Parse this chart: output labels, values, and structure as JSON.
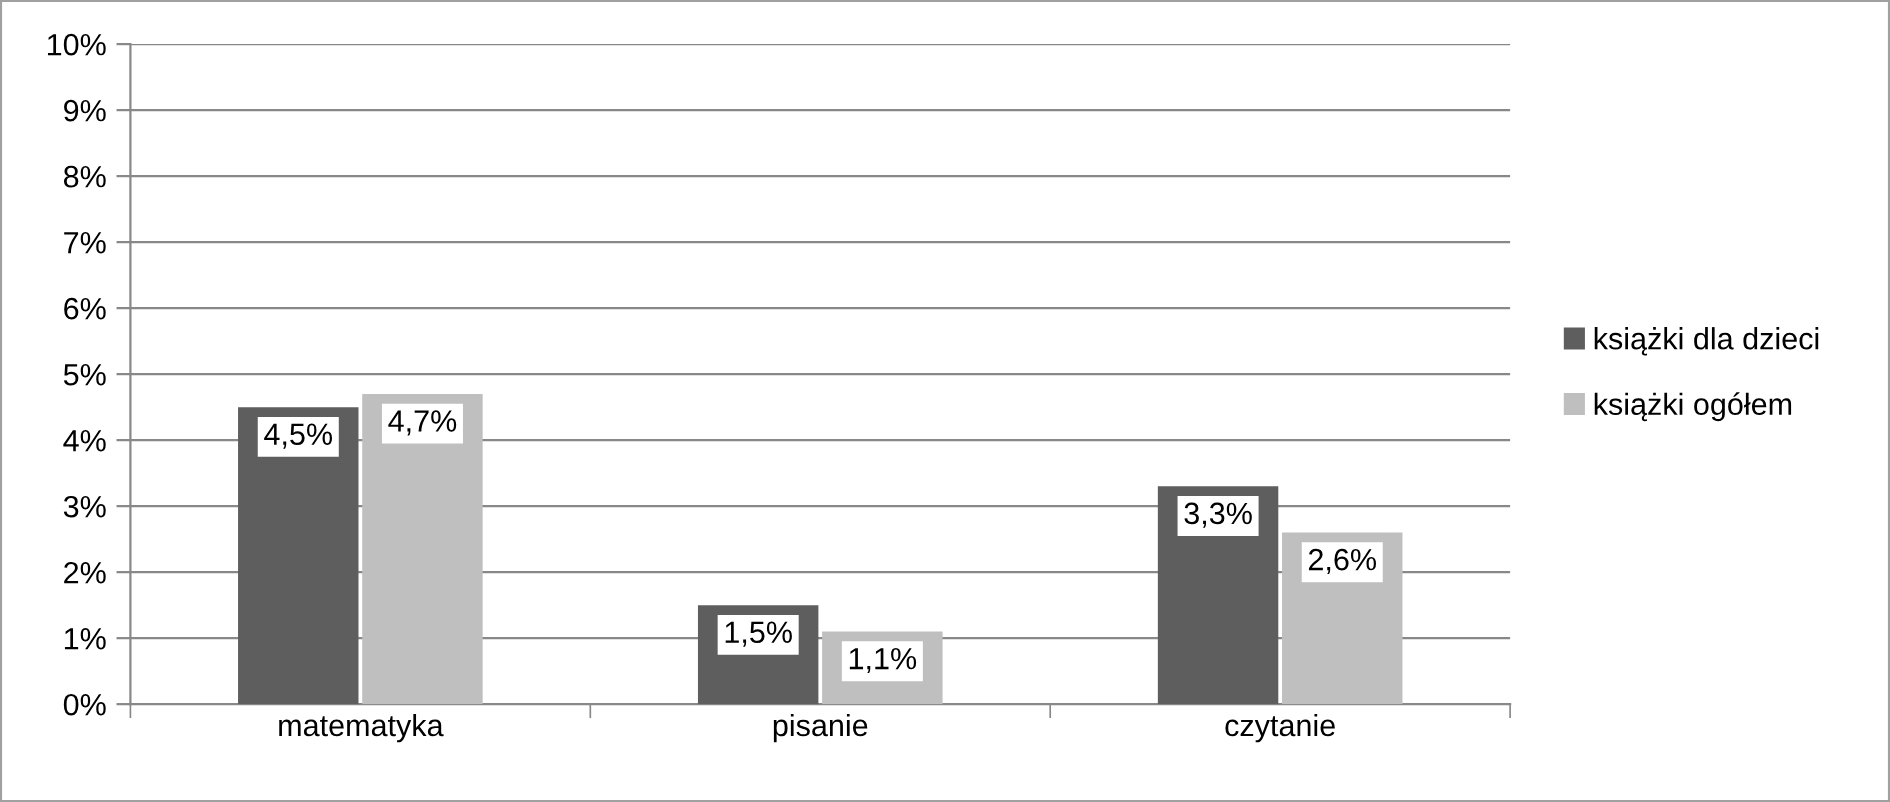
{
  "chart_data": {
    "type": "bar",
    "categories": [
      "matematyka",
      "pisanie",
      "czytanie"
    ],
    "series": [
      {
        "name": "książki dla dzieci",
        "color": "#5e5e5e",
        "values": [
          4.5,
          1.5,
          3.3
        ],
        "value_labels": [
          "4,5%",
          "1,5%",
          "3,3%"
        ]
      },
      {
        "name": "książki ogółem",
        "color": "#bfbfbf",
        "values": [
          4.7,
          1.1,
          2.6
        ],
        "value_labels": [
          "4,7%",
          "1,1%",
          "2,6%"
        ]
      }
    ],
    "ylim": [
      0,
      10
    ],
    "yticks": [
      {
        "value": 0,
        "label": "0%"
      },
      {
        "value": 1,
        "label": "1%"
      },
      {
        "value": 2,
        "label": "2%"
      },
      {
        "value": 3,
        "label": "3%"
      },
      {
        "value": 4,
        "label": "4%"
      },
      {
        "value": 5,
        "label": "5%"
      },
      {
        "value": 6,
        "label": "6%"
      },
      {
        "value": 7,
        "label": "7%"
      },
      {
        "value": 8,
        "label": "8%"
      },
      {
        "value": 9,
        "label": "9%"
      },
      {
        "value": 10,
        "label": "10%"
      }
    ],
    "grid": "y",
    "legend": "right"
  }
}
